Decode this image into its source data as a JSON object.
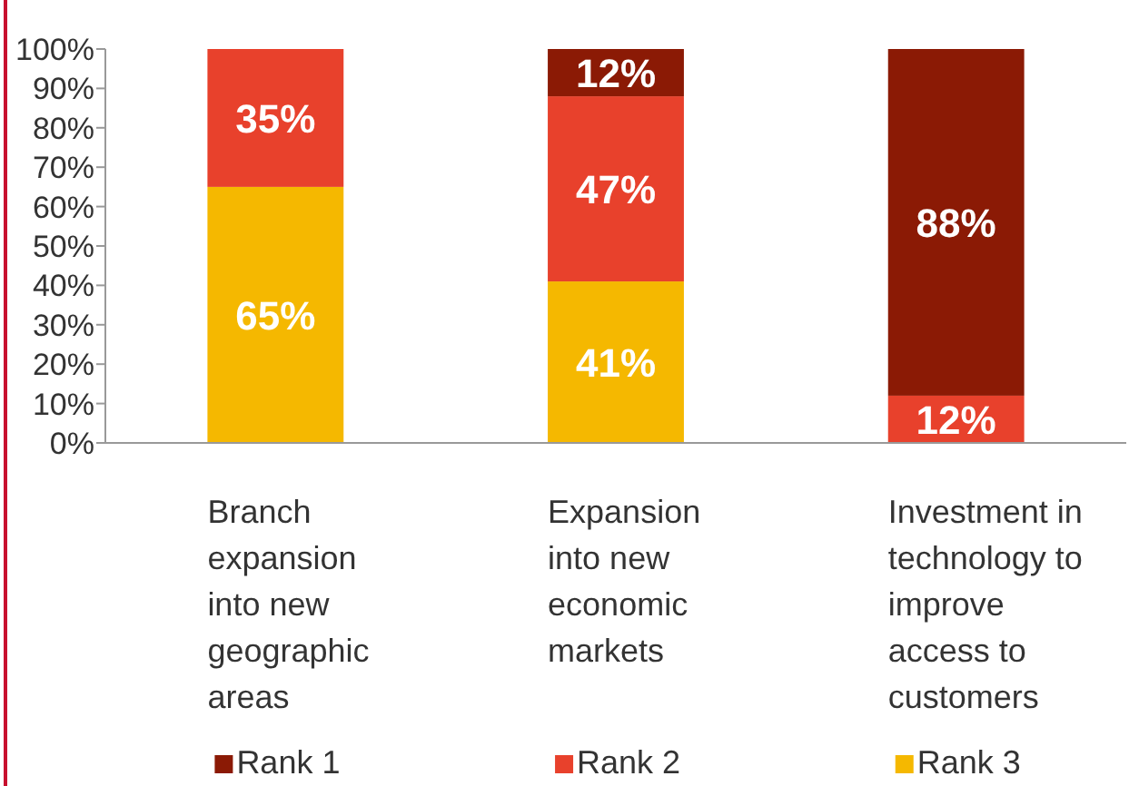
{
  "chart_data": {
    "type": "bar",
    "stacked": true,
    "categories": [
      "Branch expansion into new geographic areas",
      "Expansion into new economic markets",
      "Investment in technology to improve access to customers"
    ],
    "series": [
      {
        "name": "Rank 3",
        "color": "#f5b800",
        "values": [
          65,
          41,
          null
        ],
        "value_labels": [
          "65%",
          "41%",
          null
        ]
      },
      {
        "name": "Rank 2",
        "color": "#e8412c",
        "values": [
          35,
          47,
          12
        ],
        "value_labels": [
          "35%",
          "47%",
          "12%"
        ]
      },
      {
        "name": "Rank 1",
        "color": "#8b1a05",
        "values": [
          null,
          12,
          88
        ],
        "value_labels": [
          null,
          "12%",
          "88%"
        ]
      }
    ],
    "ylim": [
      0,
      100
    ],
    "yticks": [
      {
        "value": 0,
        "label": "0%"
      },
      {
        "value": 10,
        "label": "10%"
      },
      {
        "value": 20,
        "label": "20%"
      },
      {
        "value": 30,
        "label": "30%"
      },
      {
        "value": 40,
        "label": "40%"
      },
      {
        "value": 50,
        "label": "50%"
      },
      {
        "value": 60,
        "label": "60%"
      },
      {
        "value": 70,
        "label": "70%"
      },
      {
        "value": 80,
        "label": "80%"
      },
      {
        "value": 90,
        "label": "90%"
      },
      {
        "value": 100,
        "label": "100%"
      }
    ],
    "legend": "bottom",
    "grid": false
  }
}
